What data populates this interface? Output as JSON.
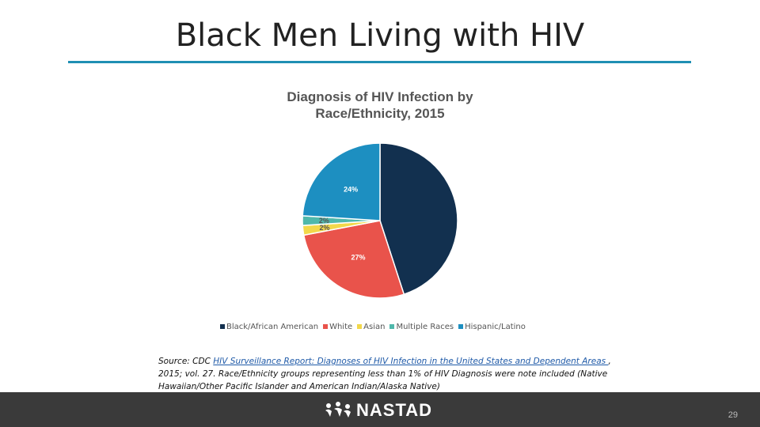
{
  "slide": {
    "title": "Black Men Living with HIV",
    "page_number": "29"
  },
  "source": {
    "prefix": "Source: CDC ",
    "link_text": "HIV Surveillance Report: Diagnoses of HIV Infection in the United States and Dependent Areas ",
    "suffix": ", 2015; vol. 27. Race/Ethnicity groups representing less than 1% of HIV Diagnosis were note included (Native Hawaiian/Other Pacific Islander and American Indian/Alaska Native)"
  },
  "footer": {
    "logo_text": "NASTAD",
    "background": "#3a3a3a"
  },
  "chart_data": {
    "type": "pie",
    "title_line1": "Diagnosis of HIV Infection by",
    "title_line2": "Race/Ethnicity, 2015",
    "legend_position": "bottom",
    "slices": [
      {
        "name": "Black/African American",
        "value": 45,
        "label": "",
        "color": "#12304f"
      },
      {
        "name": "White",
        "value": 27,
        "label": "27%",
        "color": "#e9534b"
      },
      {
        "name": "Asian",
        "value": 2,
        "label": "2%",
        "color": "#f2d84a"
      },
      {
        "name": "Multiple Races",
        "value": 2,
        "label": "2%",
        "color": "#4fb8ab"
      },
      {
        "name": "Hispanic/Latino",
        "value": 24,
        "label": "24%",
        "color": "#1d8fc1"
      }
    ]
  }
}
